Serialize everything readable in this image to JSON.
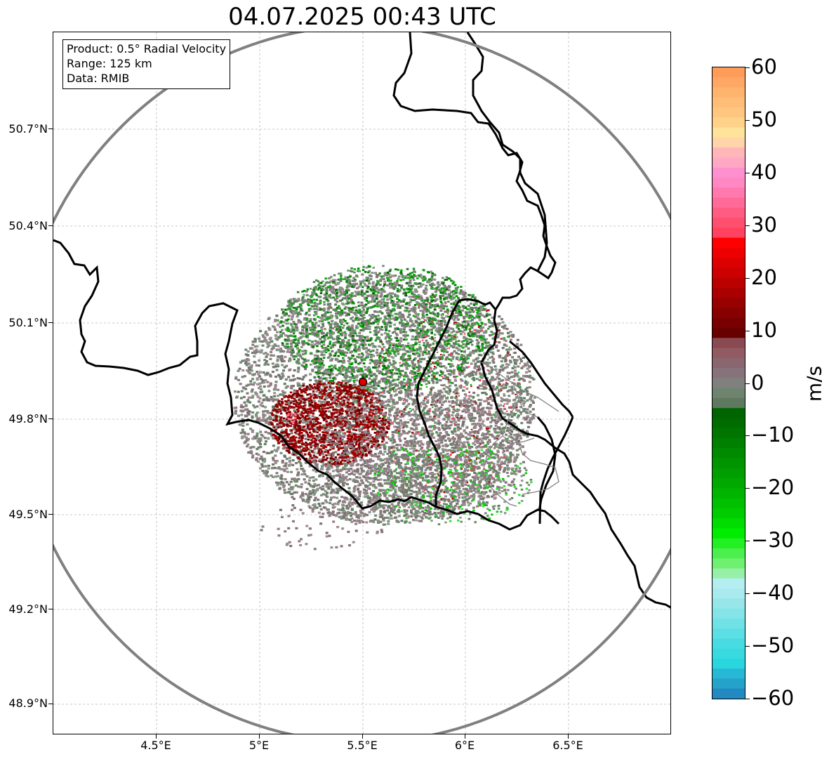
{
  "title": "04.07.2025 00:43 UTC",
  "info_box": {
    "lines": [
      "Product: 0.5° Radial Velocity",
      "Range: 125 km",
      "Data: RMIB"
    ]
  },
  "map": {
    "lon_range": [
      4.0,
      7.0
    ],
    "lat_range": [
      48.8,
      51.0
    ],
    "lat_ticks": [
      "50.7°N",
      "50.4°N",
      "50.1°N",
      "49.8°N",
      "49.5°N",
      "49.2°N",
      "48.9°N"
    ],
    "lat_tick_values": [
      50.7,
      50.4,
      50.1,
      49.8,
      49.5,
      49.2,
      48.9
    ],
    "lon_ticks": [
      "4.5°E",
      "5°E",
      "5.5°E",
      "6°E",
      "6.5°E"
    ],
    "lon_tick_values": [
      4.5,
      5.0,
      5.5,
      6.0,
      6.5
    ],
    "radar_site": {
      "lon": 5.505,
      "lat": 49.915
    },
    "range_ring_km": 125,
    "gridlines": true,
    "colors": {
      "range_ring": "#808080",
      "border": "#000000",
      "admin": "#808080",
      "grid": "#b0b0b0",
      "site": "#e00000"
    }
  },
  "colorbar": {
    "label": "m/s",
    "min": -60,
    "max": 60,
    "tick_values": [
      60,
      50,
      40,
      30,
      20,
      10,
      0,
      -10,
      -20,
      -30,
      -40,
      -50,
      -60
    ],
    "tick_labels": [
      "60",
      "50",
      "40",
      "30",
      "20",
      "10",
      "0",
      "−10",
      "−20",
      "−30",
      "−40",
      "−50",
      "−60"
    ]
  }
}
